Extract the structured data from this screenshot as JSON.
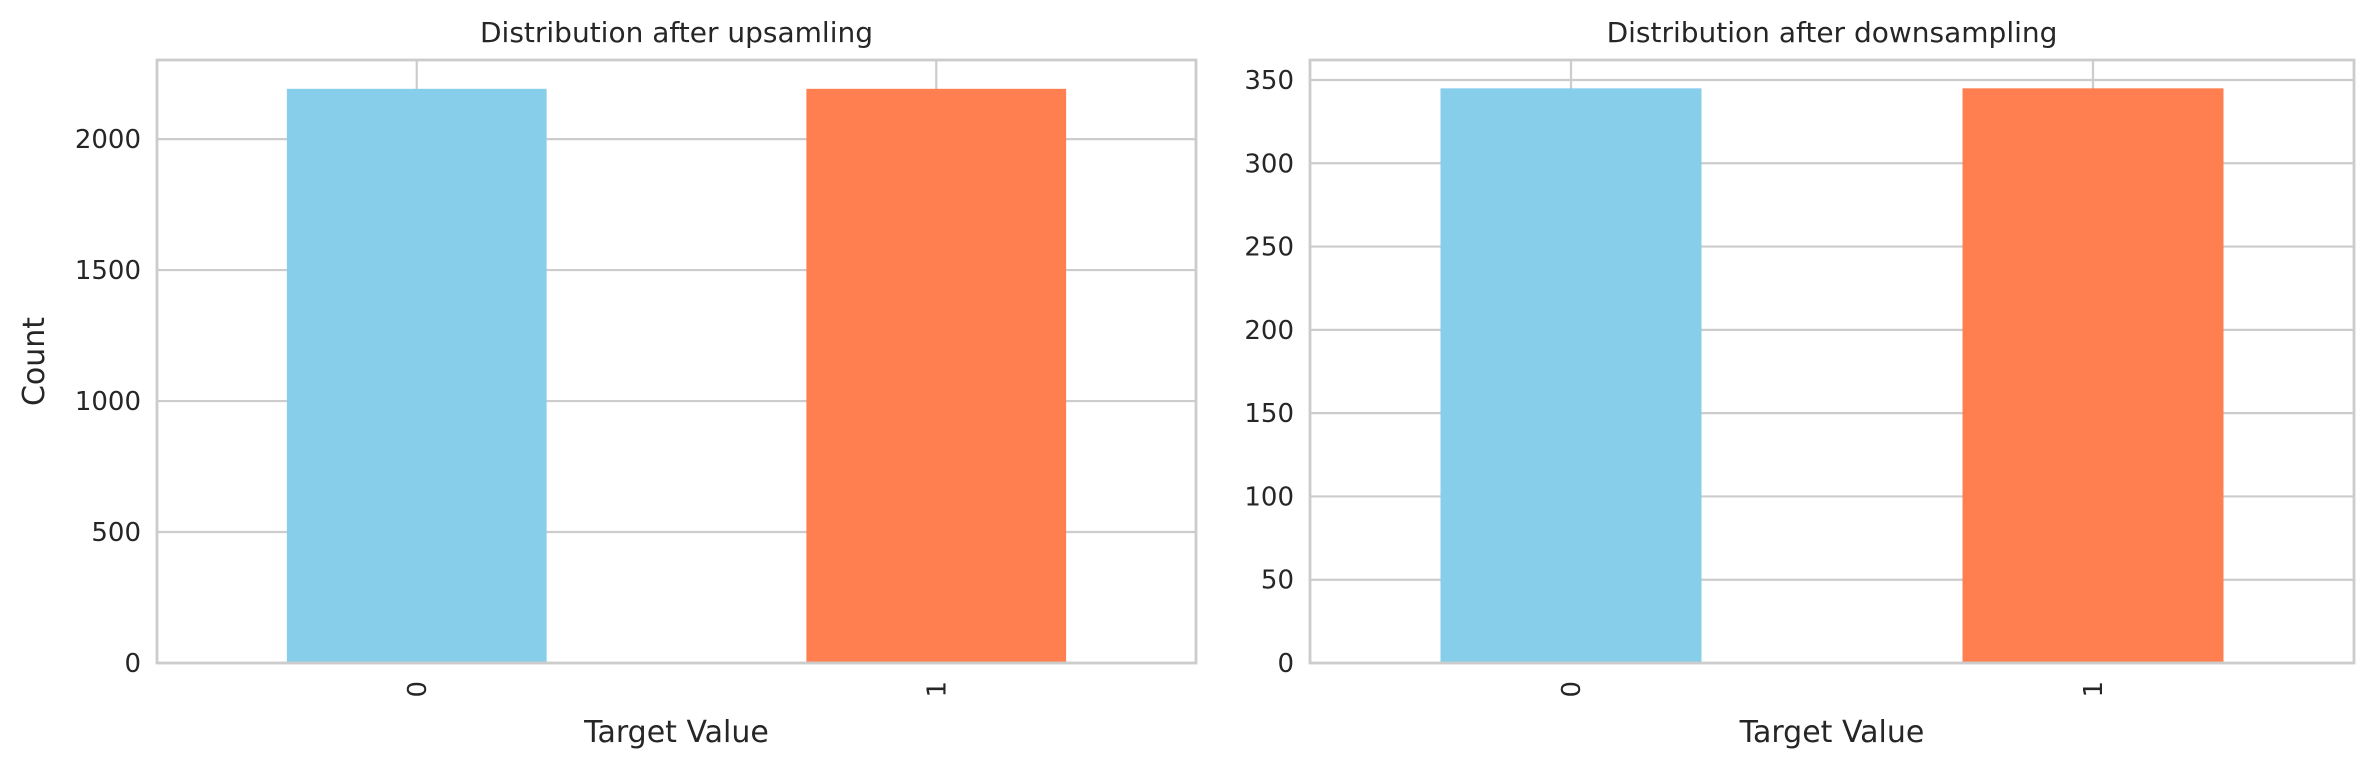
{
  "colors": {
    "bar_0": "#87CEEB",
    "bar_1": "#FF7F50",
    "grid": "#cccccc",
    "text": "#262626"
  },
  "chart_data": [
    {
      "type": "bar",
      "title": "Distribution after upsamling",
      "xlabel": "Target Value",
      "ylabel": "Count",
      "categories": [
        "0",
        "1"
      ],
      "values": [
        2192,
        2192
      ],
      "ylim": [
        0,
        2302
      ],
      "yticks": [
        0,
        500,
        1000,
        1500,
        2000
      ],
      "grid": true,
      "xtick_rotation": 90
    },
    {
      "type": "bar",
      "title": "Distribution after downsampling",
      "xlabel": "Target Value",
      "ylabel": "",
      "categories": [
        "0",
        "1"
      ],
      "values": [
        345,
        345
      ],
      "ylim": [
        0,
        362
      ],
      "yticks": [
        0,
        50,
        100,
        150,
        200,
        250,
        300,
        350
      ],
      "grid": true,
      "xtick_rotation": 90
    }
  ]
}
